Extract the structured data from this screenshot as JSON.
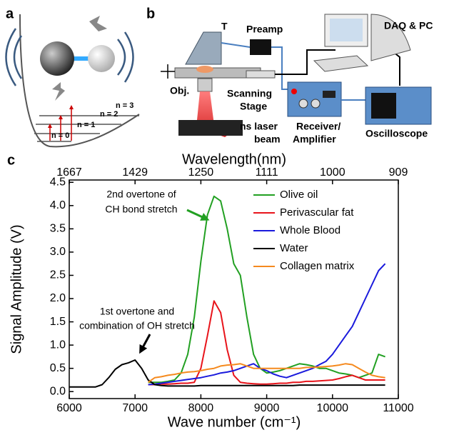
{
  "panels": {
    "a": {
      "label": "a",
      "levels": [
        "n = 3",
        "n = 2",
        "n = 1",
        "n = 0"
      ]
    },
    "b": {
      "label": "b",
      "texts": [
        "Preamp",
        "T",
        "DAQ & PC",
        "Obj.",
        "Scanning",
        "Stage",
        "ns laser",
        "beam",
        "Receiver/",
        "Amplifier",
        "Oscilloscope"
      ]
    }
  },
  "chart_data": {
    "type": "line",
    "panel_label": "c",
    "xlabel": "Wave number (cm⁻¹)",
    "x2label": "Wavelength(nm)",
    "ylabel": "Signal Amplitude (V)",
    "xlim": [
      6000,
      11000
    ],
    "xticks": [
      6000,
      7000,
      8000,
      9000,
      10000,
      11000
    ],
    "x2ticks": [
      {
        "value": 6000,
        "label": "1667"
      },
      {
        "value": 7000,
        "label": "1429"
      },
      {
        "value": 8000,
        "label": "1250"
      },
      {
        "value": 9000,
        "label": "1111"
      },
      {
        "value": 10000,
        "label": "1000"
      },
      {
        "value": 11000,
        "label": "909"
      }
    ],
    "ylim": [
      -0.15,
      4.55
    ],
    "yticks": [
      {
        "value": 0,
        "label": "0.0"
      },
      0.5,
      {
        "value": 1,
        "label": "1.0"
      },
      1.5,
      {
        "value": 2,
        "label": "2.0"
      },
      2.5,
      {
        "value": 3,
        "label": "3.0"
      },
      3.5,
      {
        "value": 4,
        "label": "4.0"
      },
      4.5
    ],
    "legend": "upper right",
    "annotations": [
      {
        "lines": [
          "2nd overtone of",
          "CH bond stretch"
        ],
        "color": "#22a022"
      },
      {
        "lines": [
          "1st overtone and",
          "combination of OH stretch"
        ],
        "color": "#000000"
      }
    ],
    "x": [
      6000,
      6100,
      6200,
      6300,
      6400,
      6500,
      6600,
      6700,
      6800,
      6900,
      7000,
      7100,
      7200,
      7300,
      7400,
      7500,
      7600,
      7700,
      7800,
      7900,
      8000,
      8100,
      8200,
      8300,
      8400,
      8500,
      8600,
      8700,
      8800,
      8900,
      9000,
      9100,
      9200,
      9300,
      9400,
      9500,
      9600,
      9700,
      9800,
      9900,
      10000,
      10100,
      10200,
      10300,
      10400,
      10500,
      10600,
      10700,
      10800
    ],
    "series": [
      {
        "name": "Olive oil",
        "color": "#22a022",
        "values": [
          null,
          null,
          null,
          null,
          null,
          null,
          null,
          null,
          null,
          null,
          null,
          null,
          0.2,
          0.2,
          0.2,
          0.22,
          0.25,
          0.4,
          0.8,
          1.6,
          2.8,
          3.8,
          4.2,
          4.1,
          3.5,
          2.75,
          2.5,
          1.6,
          0.8,
          0.5,
          0.4,
          0.42,
          0.45,
          0.5,
          0.55,
          0.6,
          0.58,
          0.55,
          0.5,
          0.5,
          0.45,
          0.4,
          0.38,
          0.35,
          0.3,
          0.35,
          0.4,
          0.8,
          0.75
        ]
      },
      {
        "name": "Perivascular fat",
        "color": "#e8141b",
        "values": [
          null,
          null,
          null,
          null,
          null,
          null,
          null,
          null,
          null,
          null,
          null,
          null,
          0.15,
          0.15,
          0.16,
          0.16,
          0.17,
          0.18,
          0.18,
          0.2,
          0.5,
          1.2,
          1.95,
          1.7,
          0.9,
          0.35,
          0.2,
          0.18,
          0.17,
          0.16,
          0.16,
          0.17,
          0.18,
          0.18,
          0.2,
          0.2,
          0.22,
          0.22,
          0.23,
          0.24,
          0.25,
          0.28,
          0.32,
          0.35,
          0.3,
          0.25,
          0.25,
          0.25,
          0.25
        ]
      },
      {
        "name": "Whole Blood",
        "color": "#1a1adc",
        "values": [
          null,
          null,
          null,
          null,
          null,
          null,
          null,
          null,
          null,
          null,
          null,
          null,
          0.15,
          0.16,
          0.18,
          0.2,
          0.22,
          0.24,
          0.26,
          0.28,
          0.3,
          0.33,
          0.36,
          0.4,
          0.42,
          0.45,
          0.5,
          0.55,
          0.6,
          0.5,
          0.45,
          0.38,
          0.33,
          0.3,
          0.35,
          0.4,
          0.45,
          0.5,
          0.58,
          0.65,
          0.8,
          1.0,
          1.2,
          1.4,
          1.7,
          2.0,
          2.3,
          2.6,
          2.75
        ]
      },
      {
        "name": "Water",
        "color": "#000000",
        "values": [
          0.1,
          0.1,
          0.1,
          0.1,
          0.1,
          0.15,
          0.3,
          0.48,
          0.58,
          0.62,
          0.68,
          0.5,
          0.25,
          0.15,
          0.13,
          0.12,
          0.12,
          0.12,
          0.12,
          0.12,
          0.13,
          0.13,
          0.13,
          0.13,
          0.13,
          0.13,
          0.13,
          0.13,
          0.13,
          0.13,
          0.13,
          0.13,
          0.13,
          0.13,
          0.13,
          0.14,
          0.14,
          0.14,
          0.14,
          0.14,
          0.14,
          0.14,
          0.14,
          0.14,
          0.14,
          0.14,
          0.14,
          0.14,
          0.14
        ]
      },
      {
        "name": "Collagen matrix",
        "color": "#f58a1f",
        "values": [
          null,
          null,
          null,
          null,
          null,
          null,
          null,
          null,
          null,
          null,
          null,
          null,
          0.2,
          0.3,
          0.32,
          0.35,
          0.37,
          0.4,
          0.42,
          0.43,
          0.45,
          0.48,
          0.5,
          0.55,
          0.57,
          0.58,
          0.6,
          0.55,
          0.5,
          0.5,
          0.5,
          0.5,
          0.5,
          0.5,
          0.5,
          0.5,
          0.52,
          0.52,
          0.53,
          0.54,
          0.55,
          0.57,
          0.6,
          0.58,
          0.5,
          0.42,
          0.35,
          0.32,
          0.3
        ]
      }
    ]
  }
}
